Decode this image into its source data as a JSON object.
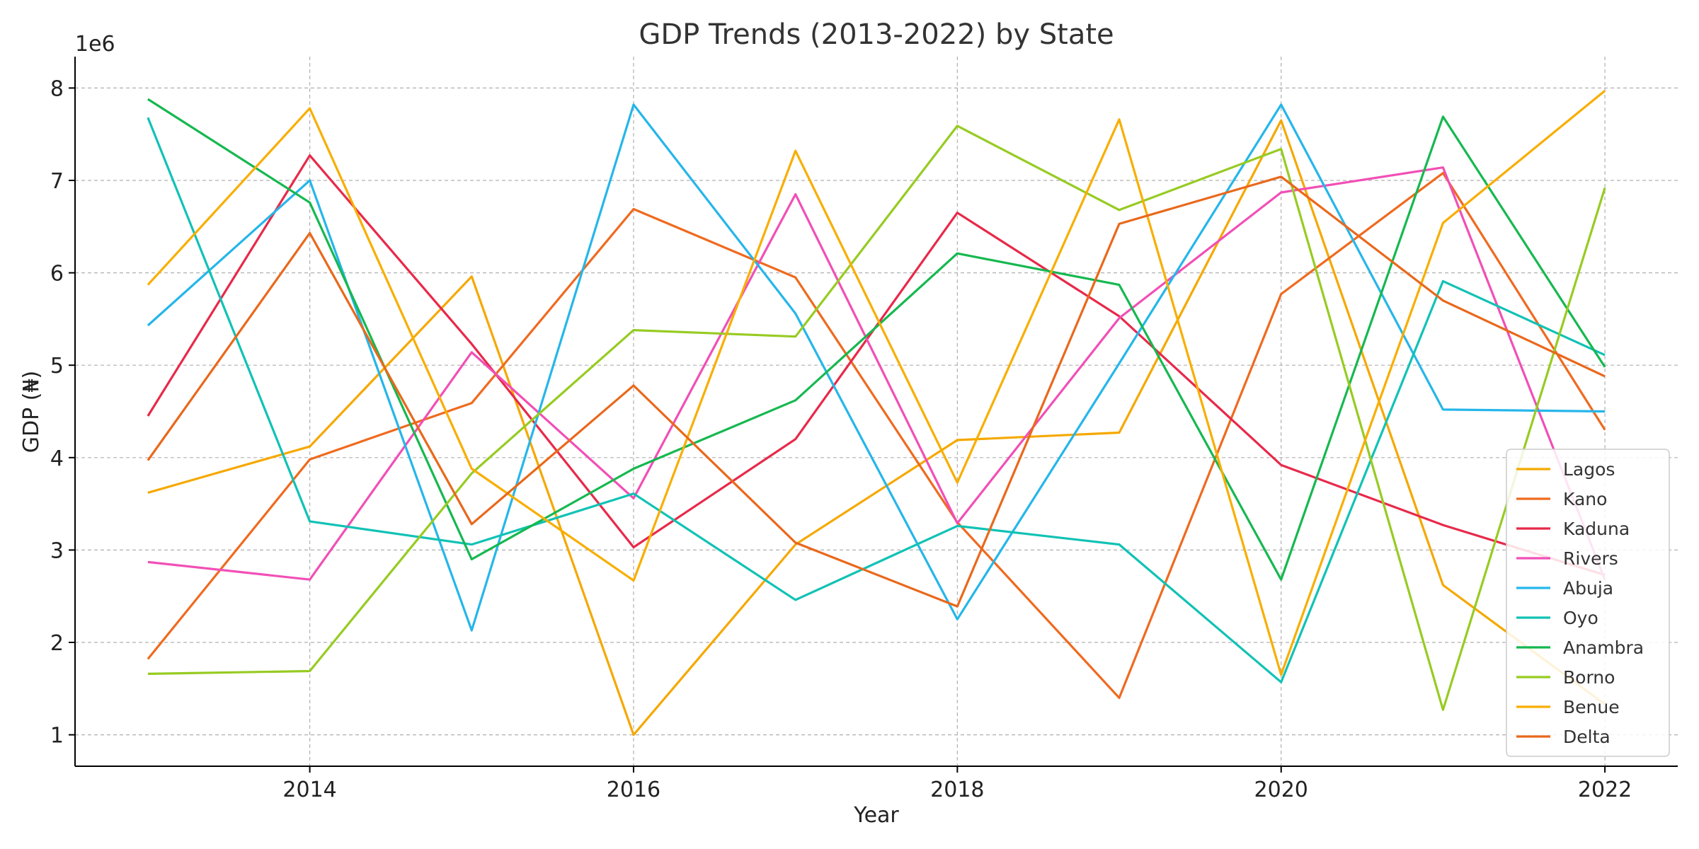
{
  "chart_data": {
    "type": "line",
    "title": "GDP Trends (2013-2022) by State",
    "xlabel": "Year",
    "ylabel": "GDP (₦)",
    "y_offset_label": "1e6",
    "x": [
      2013,
      2014,
      2015,
      2016,
      2017,
      2018,
      2019,
      2020,
      2021,
      2022
    ],
    "xlim": [
      2012.55,
      2022.45
    ],
    "ylim": [
      660000,
      8340000
    ],
    "x_ticks": [
      2014,
      2016,
      2018,
      2020,
      2022
    ],
    "x_tick_labels": [
      "2014",
      "2016",
      "2018",
      "2020",
      "2022"
    ],
    "y_ticks": [
      1000000,
      2000000,
      3000000,
      4000000,
      5000000,
      6000000,
      7000000,
      8000000
    ],
    "y_tick_labels": [
      "1",
      "2",
      "3",
      "4",
      "5",
      "6",
      "7",
      "8"
    ],
    "grid": true,
    "legend_position": "lower right",
    "series": [
      {
        "name": "Lagos",
        "color": "#f5a800",
        "values": [
          3620000,
          4120000,
          5960000,
          1000000,
          3060000,
          4190000,
          4270000,
          7650000,
          2620000,
          1330000
        ]
      },
      {
        "name": "Kano",
        "color": "#ef6a1f",
        "values": [
          1820000,
          3980000,
          4590000,
          6690000,
          5950000,
          3300000,
          1400000,
          5770000,
          7080000,
          4300000
        ]
      },
      {
        "name": "Kaduna",
        "color": "#e8294a",
        "values": [
          4450000,
          7270000,
          5230000,
          3030000,
          4200000,
          6650000,
          5530000,
          3920000,
          3270000,
          2730000
        ]
      },
      {
        "name": "Rivers",
        "color": "#f14fb6",
        "values": [
          2870000,
          2680000,
          5140000,
          3560000,
          6850000,
          3290000,
          5510000,
          6870000,
          7140000,
          2680000
        ]
      },
      {
        "name": "Abuja",
        "color": "#25b6ea",
        "values": [
          5430000,
          7000000,
          2130000,
          7820000,
          5560000,
          2250000,
          5020000,
          7820000,
          4520000,
          4500000
        ]
      },
      {
        "name": "Oyo",
        "color": "#11c2b5",
        "values": [
          7680000,
          3310000,
          3060000,
          3610000,
          2460000,
          3260000,
          3060000,
          1570000,
          5910000,
          5110000
        ]
      },
      {
        "name": "Anambra",
        "color": "#16b850",
        "values": [
          7880000,
          6760000,
          2900000,
          3880000,
          4620000,
          6210000,
          5870000,
          2680000,
          7690000,
          4980000
        ]
      },
      {
        "name": "Borno",
        "color": "#97cb22",
        "values": [
          1660000,
          1690000,
          3830000,
          5380000,
          5310000,
          7590000,
          6680000,
          7340000,
          1270000,
          6920000
        ]
      },
      {
        "name": "Benue",
        "color": "#f8ae00",
        "values": [
          5870000,
          7780000,
          3880000,
          2670000,
          7320000,
          3730000,
          7660000,
          1650000,
          6540000,
          7970000
        ]
      },
      {
        "name": "Delta",
        "color": "#e9681b",
        "values": [
          3970000,
          6430000,
          3280000,
          4780000,
          3080000,
          2390000,
          6530000,
          7040000,
          5700000,
          4880000
        ]
      }
    ]
  }
}
